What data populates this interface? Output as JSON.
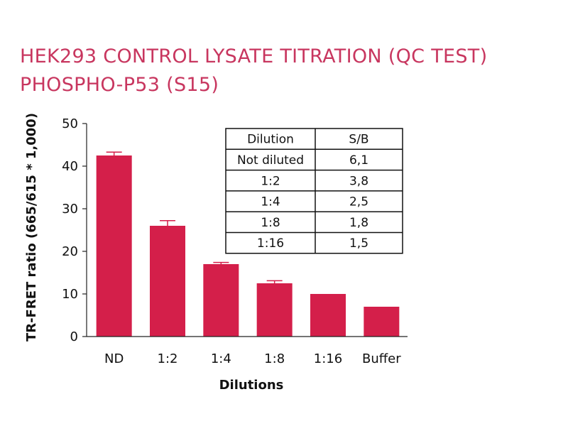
{
  "header": {
    "title_line1": "HEK293 CONTROL LYSATE TITRATION (QC TEST)",
    "title_line2": "PHOSPHO-P53 (S15)"
  },
  "colors": {
    "bar": "#d41f4a",
    "title": "#c8365f",
    "axis": "#222222"
  },
  "chart_data": {
    "type": "bar",
    "categories": [
      "ND",
      "1:2",
      "1:4",
      "1:8",
      "1:16",
      "Buffer"
    ],
    "values": [
      42.5,
      26,
      17,
      12.5,
      10,
      7
    ],
    "errors": [
      0.8,
      1.2,
      0.4,
      0.6,
      0,
      0
    ],
    "xlabel": "Dilutions",
    "ylabel": "TR-FRET ratio (665/615 * 1,000)",
    "ylim": [
      0,
      50
    ],
    "yticks": [
      "0",
      "10",
      "20",
      "30",
      "40",
      "50"
    ],
    "grid": false,
    "inset_table": {
      "headers": [
        "Dilution",
        "S/B"
      ],
      "rows": [
        [
          "Not diluted",
          "6,1"
        ],
        [
          "1:2",
          "3,8"
        ],
        [
          "1:4",
          "2,5"
        ],
        [
          "1:8",
          "1,8"
        ],
        [
          "1:16",
          "1,5"
        ]
      ]
    }
  }
}
